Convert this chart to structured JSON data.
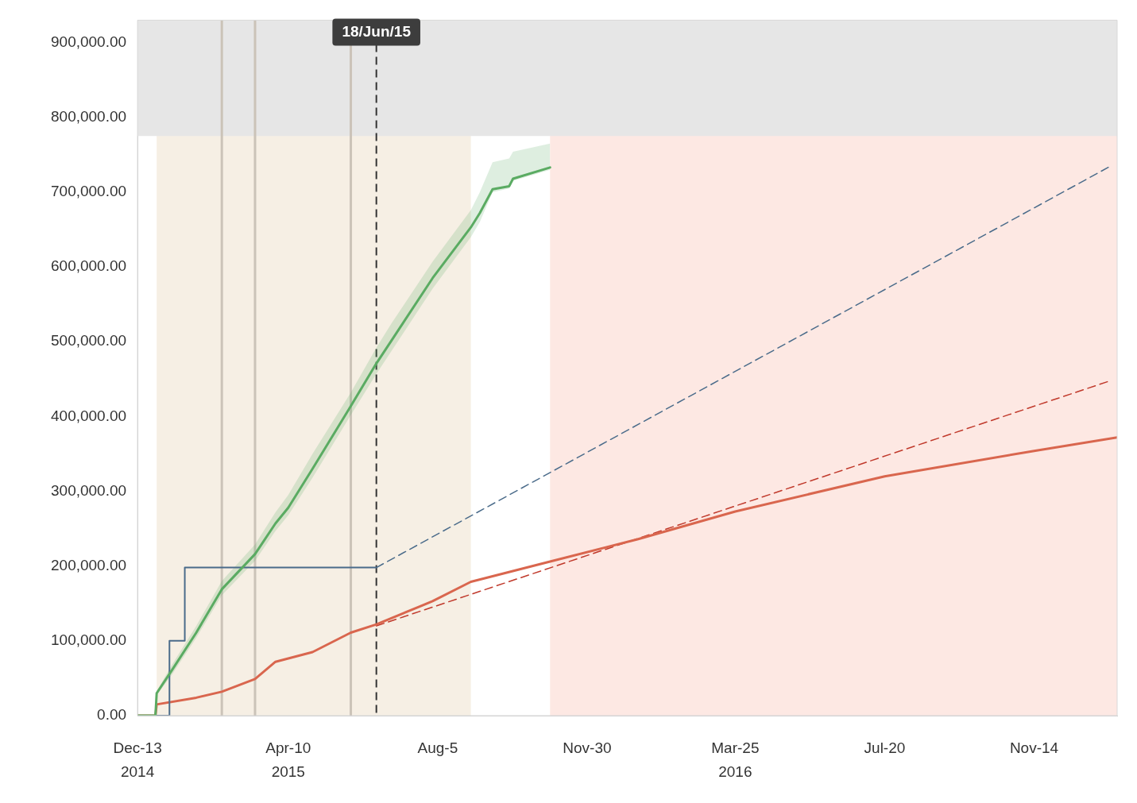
{
  "chart_data": {
    "type": "line",
    "xlim": [
      "2014-12-13",
      "2017-01-18"
    ],
    "xticks": [
      {
        "value": "2014-12-13",
        "label": "Dec-13\n2014"
      },
      {
        "value": "2015-04-10",
        "label": "Apr-10\n2015"
      },
      {
        "value": "2015-08-05",
        "label": "Aug-5"
      },
      {
        "value": "2015-11-30",
        "label": "Nov-30"
      },
      {
        "value": "2016-03-25",
        "label": "Mar-25\n2016"
      },
      {
        "value": "2016-07-20",
        "label": "Jul-20"
      },
      {
        "value": "2016-11-14",
        "label": "Nov-14"
      }
    ],
    "ylim": [
      0,
      930000
    ],
    "yticks": [
      {
        "value": 0,
        "label": "0.00"
      },
      {
        "value": 100000,
        "label": "100,000.00"
      },
      {
        "value": 200000,
        "label": "200,000.00"
      },
      {
        "value": 300000,
        "label": "300,000.00"
      },
      {
        "value": 400000,
        "label": "400,000.00"
      },
      {
        "value": 500000,
        "label": "500,000.00"
      },
      {
        "value": 600000,
        "label": "600,000.00"
      },
      {
        "value": 700000,
        "label": "700,000.00"
      },
      {
        "value": 800000,
        "label": "800,000.00"
      },
      {
        "value": 900000,
        "label": "900,000.00"
      }
    ],
    "grid": false,
    "legend": false,
    "bands": [
      {
        "axis": "x",
        "from": "2015-11-01",
        "to": "2017-01-18",
        "color": "#fde8e3"
      },
      {
        "axis": "x",
        "from": "2014-12-28",
        "to": "2015-08-31",
        "color": "#f6efe4"
      },
      {
        "axis": "y",
        "from": 775000,
        "to": 930000,
        "color": "#e6e6e6"
      }
    ],
    "ref_lines": [
      {
        "axis": "x",
        "value": "2015-02-17",
        "color": "#cbc3b8"
      },
      {
        "axis": "x",
        "value": "2015-03-15",
        "color": "#cbc3b8"
      },
      {
        "axis": "x",
        "value": "2015-05-29",
        "color": "#cbc3b8"
      },
      {
        "axis": "x",
        "value": "2015-06-18",
        "label": "18/Jun/15",
        "color": "#333333",
        "line_style": "dashed"
      }
    ],
    "series": [
      {
        "color": "#5aab62",
        "x": [
          "2014-12-13",
          "2014-12-27",
          "2014-12-28",
          "2015-01-09",
          "2015-01-28",
          "2015-02-17",
          "2015-03-15",
          "2015-03-31",
          "2015-04-10",
          "2015-04-29",
          "2015-05-29",
          "2015-06-18",
          "2015-06-30",
          "2015-08-01",
          "2015-08-31",
          "2015-09-07",
          "2015-09-17",
          "2015-09-30",
          "2015-10-03",
          "2015-11-01"
        ],
        "values": [
          0,
          0,
          30000,
          61000,
          111000,
          169000,
          216000,
          257000,
          278000,
          330000,
          414000,
          471000,
          502000,
          585000,
          653000,
          672000,
          704000,
          708000,
          718000,
          733000
        ],
        "lower": [
          null,
          null,
          27000,
          55000,
          104000,
          161000,
          207000,
          247000,
          268000,
          318000,
          402000,
          457000,
          488000,
          571000,
          640000,
          660000,
          700000,
          705000,
          715000,
          730000
        ],
        "upper": [
          null,
          null,
          33000,
          68000,
          120000,
          180000,
          229000,
          272000,
          295000,
          350000,
          432000,
          492000,
          525000,
          607000,
          676000,
          700000,
          740000,
          745000,
          754000,
          765000
        ]
      },
      {
        "type": "step",
        "color": "#4a6b8a",
        "x": [
          "2014-12-13",
          "2015-01-07",
          "2015-01-19",
          "2015-06-18"
        ],
        "values": [
          0,
          100000,
          198000,
          198000
        ]
      },
      {
        "type": "line",
        "color": "#4a6b8a",
        "line_style": "dashed",
        "x": [
          "2015-06-18",
          "2017-01-13"
        ],
        "values": [
          198000,
          735000
        ]
      },
      {
        "color": "#d9664e",
        "x": [
          "2014-12-13",
          "2014-12-27",
          "2014-12-28",
          "2015-01-28",
          "2015-02-17",
          "2015-03-15",
          "2015-03-31",
          "2015-04-29",
          "2015-05-29",
          "2015-06-18",
          "2015-08-01",
          "2015-08-31",
          "2015-11-01",
          "2016-01-09",
          "2016-03-25",
          "2016-07-20",
          "2016-11-14",
          "2017-01-18"
        ],
        "values": [
          0,
          0,
          15000,
          24000,
          32000,
          49000,
          72000,
          85000,
          111000,
          122000,
          153000,
          179000,
          206000,
          236000,
          273000,
          320000,
          354000,
          372000
        ]
      },
      {
        "type": "line",
        "color": "#c0392b",
        "line_style": "dashed",
        "x": [
          "2015-06-18",
          "2017-01-13"
        ],
        "values": [
          120000,
          448000
        ]
      }
    ]
  }
}
